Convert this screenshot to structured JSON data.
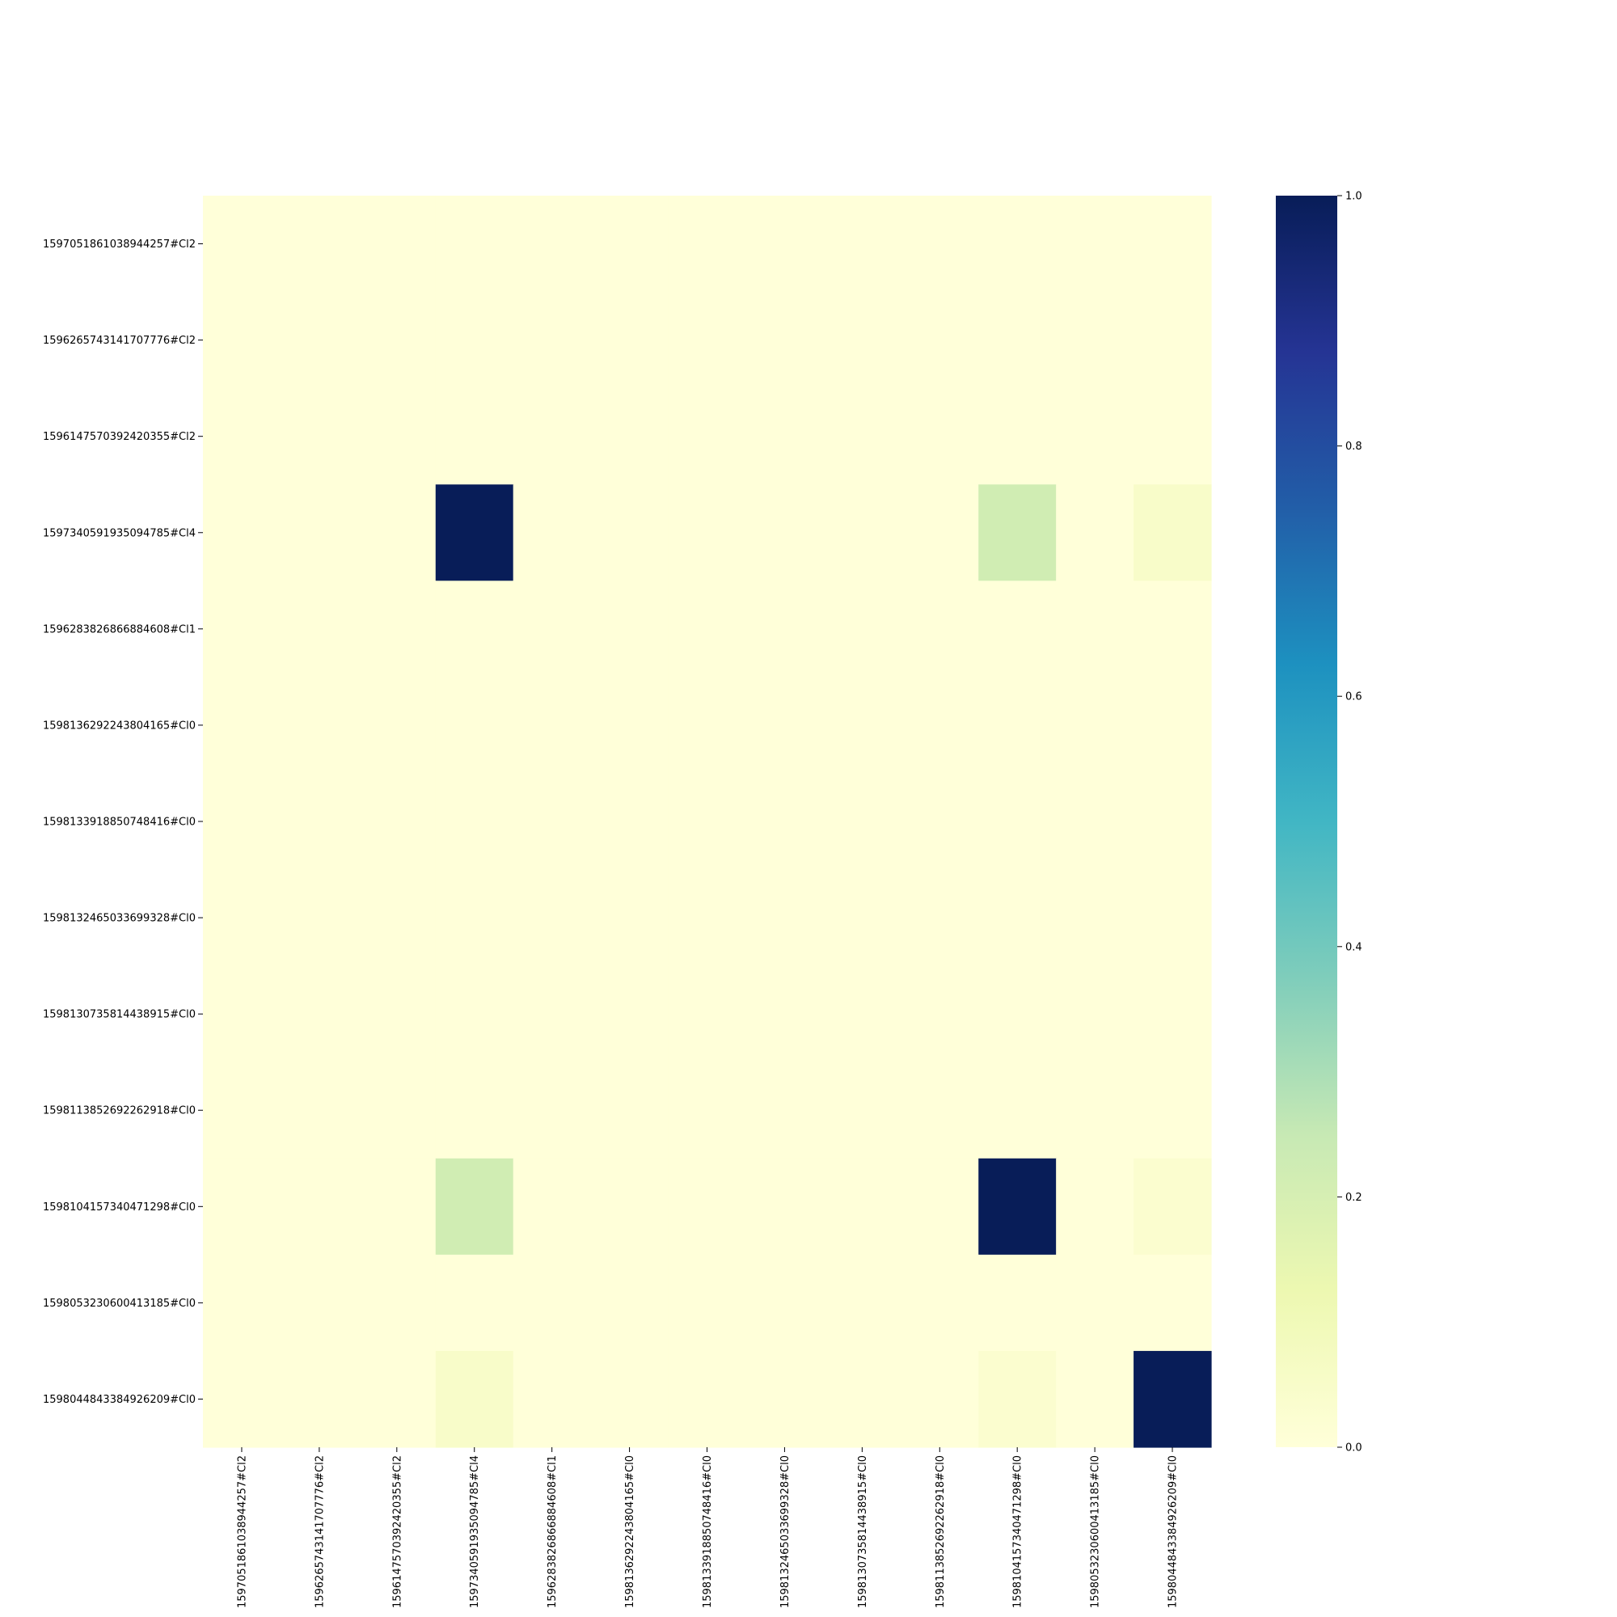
{
  "chart_data": {
    "type": "heatmap",
    "title": "",
    "xlabel": "",
    "ylabel": "",
    "colormap": "YlGnBu",
    "vmin": 0.0,
    "vmax": 1.0,
    "colorbar_ticks": [
      "0.0",
      "0.2",
      "0.4",
      "0.6",
      "0.8",
      "1.0"
    ],
    "colorbar_tick_values": [
      0.0,
      0.2,
      0.4,
      0.6,
      0.8,
      1.0
    ],
    "colormap_stops": [
      "#ffffd9",
      "#edf8b1",
      "#c7e9b4",
      "#7fcdbb",
      "#41b6c4",
      "#1d91c0",
      "#225ea8",
      "#253494",
      "#081d58"
    ],
    "rows": [
      "1597051861038944257#Cl2",
      "1596265743141707776#Cl2",
      "1596147570392420355#Cl2",
      "1597340591935094785#Cl4",
      "1596283826866884608#Cl1",
      "1598136292243804165#Cl0",
      "1598133918850748416#Cl0",
      "1598132465033699328#Cl0",
      "1598130735814438915#Cl0",
      "1598113852692262918#Cl0",
      "1598104157340471298#Cl0",
      "1598053230600413185#Cl0",
      "1598044843384926209#Cl0"
    ],
    "columns": [
      "1597051861038944257#Cl2",
      "1596265743141707776#Cl2",
      "1596147570392420355#Cl2",
      "1597340591935094785#Cl4",
      "1596283826866884608#Cl1",
      "1598136292243804165#Cl0",
      "1598133918850748416#Cl0",
      "1598132465033699328#Cl0",
      "1598130735814438915#Cl0",
      "1598113852692262918#Cl0",
      "1598104157340471298#Cl0",
      "1598053230600413185#Cl0",
      "1598044843384926209#Cl0"
    ],
    "values": [
      [
        0,
        0,
        0,
        0,
        0,
        0,
        0,
        0,
        0,
        0,
        0,
        0,
        0
      ],
      [
        0,
        0,
        0,
        0,
        0,
        0,
        0,
        0,
        0,
        0,
        0,
        0,
        0
      ],
      [
        0,
        0,
        0,
        0,
        0,
        0,
        0,
        0,
        0,
        0,
        0,
        0,
        0
      ],
      [
        0,
        0,
        0,
        1.0,
        0,
        0,
        0,
        0,
        0,
        0,
        0.22,
        0,
        0.05
      ],
      [
        0,
        0,
        0,
        0,
        0,
        0,
        0,
        0,
        0,
        0,
        0,
        0,
        0
      ],
      [
        0,
        0,
        0,
        0,
        0,
        0,
        0,
        0,
        0,
        0,
        0,
        0,
        0
      ],
      [
        0,
        0,
        0,
        0,
        0,
        0,
        0,
        0,
        0,
        0,
        0,
        0,
        0
      ],
      [
        0,
        0,
        0,
        0,
        0,
        0,
        0,
        0,
        0,
        0,
        0,
        0,
        0
      ],
      [
        0,
        0,
        0,
        0,
        0,
        0,
        0,
        0,
        0,
        0,
        0,
        0,
        0
      ],
      [
        0,
        0,
        0,
        0,
        0,
        0,
        0,
        0,
        0,
        0,
        0,
        0,
        0
      ],
      [
        0,
        0,
        0,
        0.22,
        0,
        0,
        0,
        0,
        0,
        0,
        1.0,
        0,
        0.03
      ],
      [
        0,
        0,
        0,
        0,
        0,
        0,
        0,
        0,
        0,
        0,
        0,
        0,
        0
      ],
      [
        0,
        0,
        0,
        0.05,
        0,
        0,
        0,
        0,
        0,
        0,
        0.03,
        0,
        1.0
      ]
    ]
  }
}
